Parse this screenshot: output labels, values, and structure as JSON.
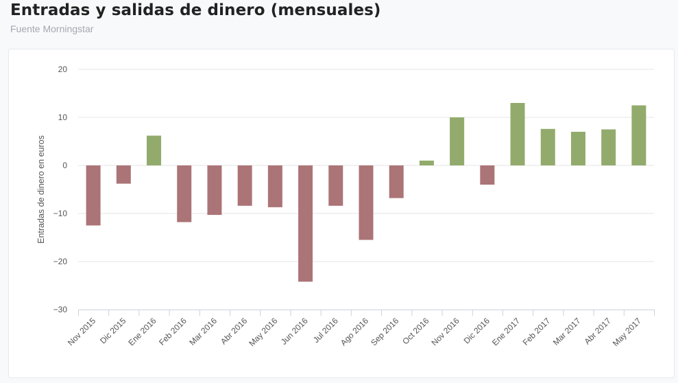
{
  "header": {
    "title": "Entradas y salidas de dinero (mensuales)",
    "subtitle": "Fuente Morningstar"
  },
  "colors": {
    "positive": "#92ab6c",
    "negative": "#ab7477",
    "grid": "#e6e6e6",
    "axis": "#c8d1e0"
  },
  "chart_data": {
    "type": "bar",
    "title": "",
    "xlabel": "",
    "ylabel": "Entradas de dinero en euros",
    "ylim": [
      -30,
      20
    ],
    "yticks": [
      20,
      10,
      0,
      -10,
      -20,
      -30
    ],
    "ytick_labels": [
      "20",
      "10",
      "0",
      "−10",
      "−20",
      "−30"
    ],
    "grid": true,
    "legend": "none",
    "categories": [
      "Nov 2015",
      "Dic 2015",
      "Ene 2016",
      "Feb 2016",
      "Mar 2016",
      "Abr 2016",
      "May 2016",
      "Jun 2016",
      "Jul 2016",
      "Ago 2016",
      "Sep 2016",
      "Oct 2016",
      "Nov 2016",
      "Dic 2016",
      "Ene 2017",
      "Feb 2017",
      "Mar 2017",
      "Abr 2017",
      "May 2017"
    ],
    "values": [
      -12.5,
      -3.8,
      6.2,
      -11.8,
      -10.3,
      -8.4,
      -8.7,
      -24.2,
      -8.4,
      -15.5,
      -6.8,
      1.0,
      10.0,
      -4.0,
      13.0,
      7.6,
      7.0,
      7.5,
      12.5
    ]
  }
}
